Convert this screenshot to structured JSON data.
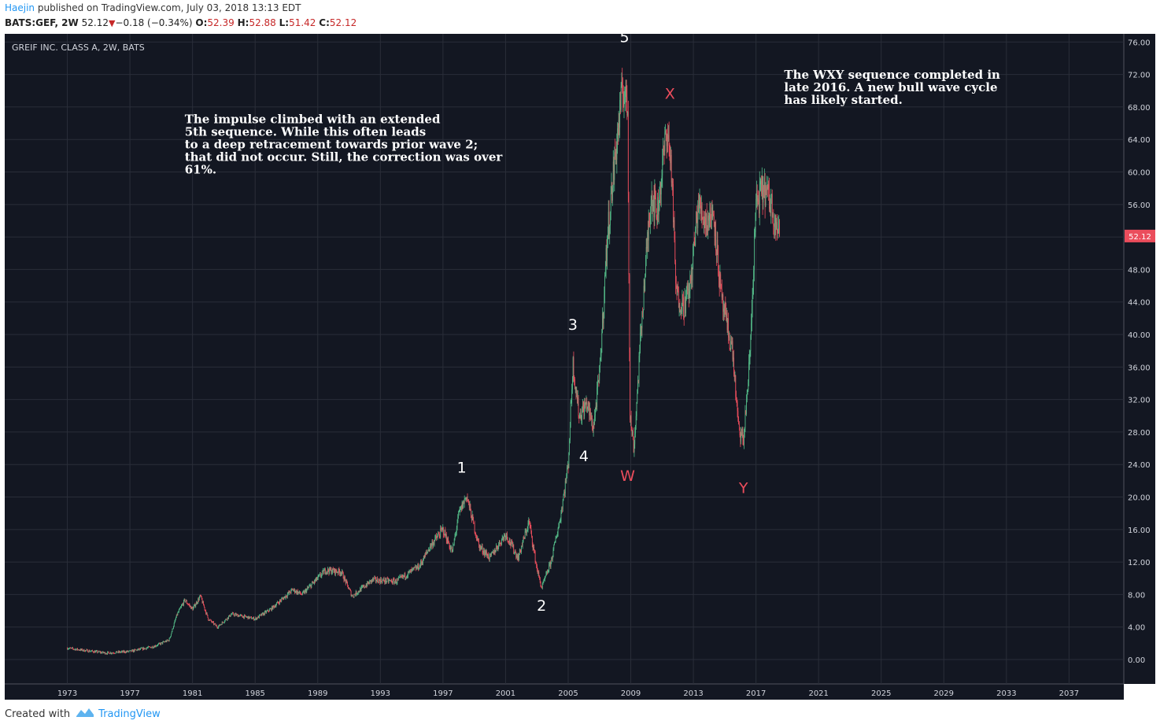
{
  "header": {
    "user": "Haejin",
    "published_text": "published on TradingView.com, July 03, 2018 13:13 EDT",
    "symbol": "BATS:GEF, 2W",
    "last": "52.12",
    "change": "−0.18 (−0.34%)",
    "open_label": "O:",
    "open": "52.39",
    "high_label": "H:",
    "high": "52.88",
    "low_label": "L:",
    "low": "51.42",
    "close_label": "C:",
    "close": "52.12"
  },
  "footer": {
    "created_with": "Created with",
    "brand": "TradingView"
  },
  "colors": {
    "background": "#131722",
    "grid": "#2a2e39",
    "up": "#53b987",
    "down": "#eb4d5c",
    "axis_text": "#d1d4dc",
    "price_tag": "#eb4d5c"
  },
  "chart_data": {
    "type": "candlestick",
    "title": "GREIF INC. CLASS A, 2W, BATS",
    "current_price_label": "52.12",
    "ylim": [
      -3,
      77
    ],
    "y_ticks": [
      "0.00",
      "4.00",
      "8.00",
      "12.00",
      "16.00",
      "20.00",
      "24.00",
      "28.00",
      "32.00",
      "36.00",
      "40.00",
      "44.00",
      "48.00",
      "52.00",
      "56.00",
      "60.00",
      "64.00",
      "68.00",
      "72.00",
      "76.00"
    ],
    "xlim": [
      1969,
      2040.5
    ],
    "x_ticks": [
      "1973",
      "1977",
      "1981",
      "1985",
      "1989",
      "1993",
      "1997",
      "2001",
      "2005",
      "2009",
      "2013",
      "2017",
      "2021",
      "2025",
      "2029",
      "2033",
      "2037"
    ],
    "price_path": [
      [
        1973.0,
        1.4
      ],
      [
        1974.2,
        1.1
      ],
      [
        1975.5,
        0.8
      ],
      [
        1977.0,
        1.0
      ],
      [
        1978.5,
        1.6
      ],
      [
        1979.5,
        2.4
      ],
      [
        1980.0,
        5.5
      ],
      [
        1980.5,
        7.3
      ],
      [
        1981.0,
        6.2
      ],
      [
        1981.5,
        7.8
      ],
      [
        1982.0,
        5.0
      ],
      [
        1982.6,
        4.0
      ],
      [
        1983.5,
        5.6
      ],
      [
        1985.0,
        5.0
      ],
      [
        1986.0,
        6.2
      ],
      [
        1987.4,
        8.6
      ],
      [
        1988.0,
        8.0
      ],
      [
        1989.5,
        11.0
      ],
      [
        1990.5,
        10.8
      ],
      [
        1991.2,
        7.8
      ],
      [
        1992.5,
        9.8
      ],
      [
        1994.0,
        9.6
      ],
      [
        1995.5,
        11.5
      ],
      [
        1996.2,
        14.0
      ],
      [
        1997.0,
        16.0
      ],
      [
        1997.6,
        13.2
      ],
      [
        1998.0,
        17.8
      ],
      [
        1998.5,
        20.2
      ],
      [
        1999.3,
        14.0
      ],
      [
        2000.0,
        12.5
      ],
      [
        2001.0,
        15.5
      ],
      [
        2001.8,
        12.5
      ],
      [
        2002.5,
        17.0
      ],
      [
        2003.0,
        11.2
      ],
      [
        2003.3,
        8.8
      ],
      [
        2003.9,
        12.0
      ],
      [
        2004.5,
        17.5
      ],
      [
        2005.0,
        24.0
      ],
      [
        2005.3,
        36.5
      ],
      [
        2005.7,
        30.0
      ],
      [
        2006.2,
        31.5
      ],
      [
        2006.6,
        28.5
      ],
      [
        2007.0,
        35.0
      ],
      [
        2007.5,
        52.0
      ],
      [
        2008.0,
        62.0
      ],
      [
        2008.5,
        70.5
      ],
      [
        2008.8,
        68.0
      ],
      [
        2008.95,
        30.0
      ],
      [
        2009.2,
        26.0
      ],
      [
        2009.7,
        42.0
      ],
      [
        2010.3,
        57.5
      ],
      [
        2010.7,
        55.0
      ],
      [
        2011.3,
        65.5
      ],
      [
        2011.6,
        60.5
      ],
      [
        2011.9,
        45.0
      ],
      [
        2012.4,
        43.5
      ],
      [
        2012.8,
        46.0
      ],
      [
        2013.3,
        56.0
      ],
      [
        2013.8,
        54.0
      ],
      [
        2014.3,
        55.0
      ],
      [
        2014.8,
        44.0
      ],
      [
        2015.5,
        38.0
      ],
      [
        2015.9,
        28.0
      ],
      [
        2016.2,
        27.0
      ],
      [
        2016.6,
        37.0
      ],
      [
        2017.0,
        56.0
      ],
      [
        2017.5,
        58.0
      ],
      [
        2018.0,
        56.0
      ],
      [
        2018.5,
        52.12
      ]
    ],
    "wave_labels": [
      {
        "text": "1",
        "year": 1998.2,
        "price": 23.0,
        "color": "#ffffff"
      },
      {
        "text": "2",
        "year": 2003.3,
        "price": 6.0,
        "color": "#ffffff"
      },
      {
        "text": "3",
        "year": 2005.3,
        "price": 40.6,
        "color": "#ffffff"
      },
      {
        "text": "4",
        "year": 2006.0,
        "price": 24.4,
        "color": "#ffffff"
      },
      {
        "text": "5",
        "year": 2008.6,
        "price": 76.0,
        "color": "#ffffff"
      },
      {
        "text": "W",
        "year": 2008.8,
        "price": 22.0,
        "color": "#eb4d5c"
      },
      {
        "text": "X",
        "year": 2011.5,
        "price": 69.0,
        "color": "#eb4d5c"
      },
      {
        "text": "Y",
        "year": 2016.2,
        "price": 20.5,
        "color": "#eb4d5c"
      }
    ],
    "annotations": [
      {
        "year": 1980.5,
        "price": 66.0,
        "lines": [
          "The impulse climbed with an extended",
          "5th sequence. While this often leads",
          "to a deep retracement towards prior wave 2;",
          "that did not occur. Still, the correction was over",
          "61%."
        ]
      },
      {
        "year": 2018.8,
        "price": 71.5,
        "lines": [
          "The WXY sequence completed in",
          "late 2016. A new bull wave cycle",
          "has likely started."
        ]
      }
    ]
  }
}
